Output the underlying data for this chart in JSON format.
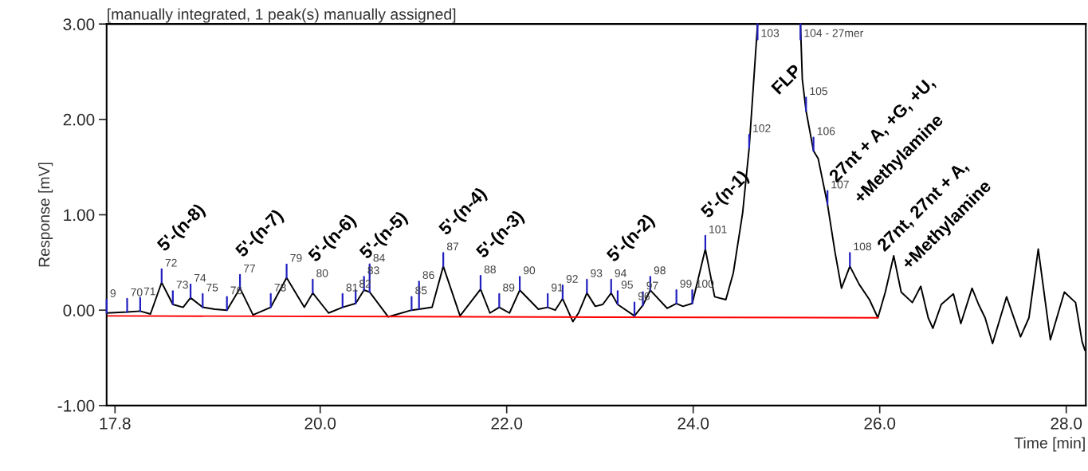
{
  "chart_data": {
    "type": "line",
    "title": "[manually integrated, 1 peak(s) manually assigned]",
    "xlabel": "Time [min]",
    "ylabel": "Response [mV]",
    "xlim": [
      17.71,
      28.21
    ],
    "ylim": [
      -1.0,
      3.0
    ],
    "xticks": [
      17.8,
      {
        "value": 20,
        "label": "20.0"
      },
      {
        "value": 22,
        "label": "22.0"
      },
      {
        "value": 24,
        "label": "24.0"
      },
      {
        "value": 26,
        "label": "26.0"
      },
      {
        "value": 28,
        "label": "28.0"
      }
    ],
    "yticks": [
      {
        "value": -1,
        "label": "-1.00"
      },
      {
        "value": 0,
        "label": "0.00"
      },
      {
        "value": 1,
        "label": "1.00"
      },
      {
        "value": 2,
        "label": "2.00"
      },
      {
        "value": 3,
        "label": "3.00"
      }
    ],
    "grid": false,
    "series": [
      {
        "color": "#000000",
        "x": [
          17.71,
          17.93,
          18.07,
          18.18,
          18.3,
          18.42,
          18.53,
          18.61,
          18.74,
          18.87,
          19.0,
          19.14,
          19.28,
          19.47,
          19.64,
          19.83,
          19.92,
          20.09,
          20.24,
          20.38,
          20.47,
          20.53,
          20.73,
          20.98,
          21.06,
          21.2,
          21.32,
          21.5,
          21.72,
          21.82,
          21.92,
          22.03,
          22.14,
          22.34,
          22.44,
          22.52,
          22.6,
          22.71,
          22.77,
          22.86,
          22.95,
          23.03,
          23.12,
          23.19,
          23.37,
          23.46,
          23.54,
          23.72,
          23.82,
          23.89,
          23.99,
          24.13,
          24.23,
          24.35,
          24.43,
          24.53,
          24.6,
          24.65,
          24.69,
          24.9,
          25.15,
          25.17,
          25.21,
          25.29,
          25.34,
          25.44,
          25.52,
          25.59,
          25.68,
          25.78,
          25.89,
          25.98,
          26.06,
          26.15,
          26.23,
          26.35,
          26.44,
          26.52,
          26.57,
          26.66,
          26.79,
          26.87,
          26.99,
          27.06,
          27.13,
          27.21,
          27.36,
          27.51,
          27.6,
          27.7,
          27.83,
          27.98,
          28.1,
          28.17,
          28.2
        ],
        "values": [
          -0.03,
          -0.02,
          -0.01,
          -0.04,
          0.29,
          0.06,
          0.03,
          0.13,
          0.03,
          0.01,
          0.0,
          0.23,
          -0.05,
          0.03,
          0.34,
          0.03,
          0.18,
          -0.03,
          0.03,
          0.07,
          0.21,
          0.19,
          -0.07,
          0.0,
          0.01,
          0.03,
          0.46,
          -0.06,
          0.22,
          -0.03,
          0.03,
          -0.03,
          0.21,
          0.01,
          0.03,
          0.0,
          0.12,
          -0.12,
          -0.03,
          0.18,
          0.04,
          0.06,
          0.18,
          0.06,
          -0.06,
          0.05,
          0.21,
          0.02,
          0.07,
          0.04,
          0.07,
          0.64,
          0.14,
          0.11,
          0.39,
          1.02,
          1.7,
          2.42,
          3.0,
          null,
          3.0,
          2.42,
          2.09,
          1.67,
          1.59,
          1.11,
          0.61,
          0.23,
          0.46,
          0.27,
          0.11,
          -0.08,
          0.19,
          0.57,
          0.19,
          0.08,
          0.25,
          -0.08,
          -0.19,
          0.06,
          0.17,
          -0.14,
          0.23,
          0.06,
          -0.08,
          -0.35,
          0.14,
          -0.28,
          -0.08,
          0.64,
          -0.31,
          0.19,
          0.08,
          -0.33,
          -0.42
        ]
      },
      {
        "type": "line",
        "color": "#ff0000",
        "x": [
          17.71,
          25.98
        ],
        "values": [
          -0.06,
          -0.08
        ]
      }
    ],
    "annotations": [
      {
        "text": "5'-(n-8)",
        "x": 18.3,
        "y": 0.29
      },
      {
        "text": "5'-(n-7)",
        "x": 19.14,
        "y": 0.23
      },
      {
        "text": "5'-(n-6)",
        "x": 19.92,
        "y": 0.18
      },
      {
        "text": "5'-(n-5)",
        "x": 20.47,
        "y": 0.21
      },
      {
        "text": "5'-(n-4)",
        "x": 21.32,
        "y": 0.46
      },
      {
        "text": "5'-(n-3)",
        "x": 21.72,
        "y": 0.22
      },
      {
        "text": "5'-(n-2)",
        "x": 23.12,
        "y": 0.18
      },
      {
        "text": "5'-(n-1)",
        "x": 24.13,
        "y": 0.64
      },
      "FLP",
      "27nt + A, +G, +U,",
      "+Methylamine",
      "27nt, 27nt + A,",
      "+Methylamine",
      {
        "text": "9",
        "x": 17.71,
        "y": -0.03
      },
      {
        "text": "70",
        "x": 17.93,
        "y": -0.02
      },
      {
        "text": "71",
        "x": 18.07,
        "y": -0.01
      },
      {
        "text": "72",
        "x": 18.3,
        "y": 0.29
      },
      {
        "text": "73",
        "x": 18.42,
        "y": 0.06
      },
      {
        "text": "74",
        "x": 18.61,
        "y": 0.13
      },
      {
        "text": "75",
        "x": 18.74,
        "y": 0.03
      },
      {
        "text": "76",
        "x": 19.0,
        "y": 0.0
      },
      {
        "text": "77",
        "x": 19.14,
        "y": 0.23
      },
      {
        "text": "78",
        "x": 19.47,
        "y": 0.03
      },
      {
        "text": "79",
        "x": 19.64,
        "y": 0.34
      },
      {
        "text": "80",
        "x": 19.92,
        "y": 0.18
      },
      {
        "text": "81",
        "x": 20.24,
        "y": 0.03
      },
      {
        "text": "82",
        "x": 20.38,
        "y": 0.07
      },
      {
        "text": "83",
        "x": 20.47,
        "y": 0.21
      },
      {
        "text": "84",
        "x": 20.53,
        "y": 0.19
      },
      {
        "text": "85",
        "x": 20.98,
        "y": 0.0
      },
      {
        "text": "86",
        "x": 21.06,
        "y": 0.01
      },
      {
        "text": "87",
        "x": 21.32,
        "y": 0.46
      },
      {
        "text": "88",
        "x": 21.72,
        "y": 0.22
      },
      {
        "text": "89",
        "x": 21.92,
        "y": 0.03
      },
      {
        "text": "90",
        "x": 22.14,
        "y": 0.21
      },
      {
        "text": "91",
        "x": 22.44,
        "y": 0.03
      },
      {
        "text": "92",
        "x": 22.6,
        "y": 0.12
      },
      {
        "text": "93",
        "x": 22.86,
        "y": 0.18
      },
      {
        "text": "94",
        "x": 23.12,
        "y": 0.18
      },
      {
        "text": "95",
        "x": 23.19,
        "y": 0.06
      },
      {
        "text": "96",
        "x": 23.37,
        "y": -0.06
      },
      {
        "text": "97",
        "x": 23.46,
        "y": 0.05
      },
      {
        "text": "98",
        "x": 23.54,
        "y": 0.21
      },
      {
        "text": "99",
        "x": 23.82,
        "y": 0.07
      },
      {
        "text": "100",
        "x": 23.99,
        "y": 0.07
      },
      {
        "text": "101",
        "x": 24.13,
        "y": 0.64
      },
      {
        "text": "102",
        "x": 24.6,
        "y": 1.7
      },
      {
        "text": "103",
        "x": 24.69,
        "y": 3.0
      },
      {
        "text": "104 - 27mer",
        "x": 25.15,
        "y": 3.0
      },
      {
        "text": "105",
        "x": 25.21,
        "y": 2.09
      },
      {
        "text": "106",
        "x": 25.29,
        "y": 1.67
      },
      {
        "text": "107",
        "x": 25.44,
        "y": 1.11
      },
      {
        "text": "108",
        "x": 25.68,
        "y": 0.46
      }
    ]
  }
}
